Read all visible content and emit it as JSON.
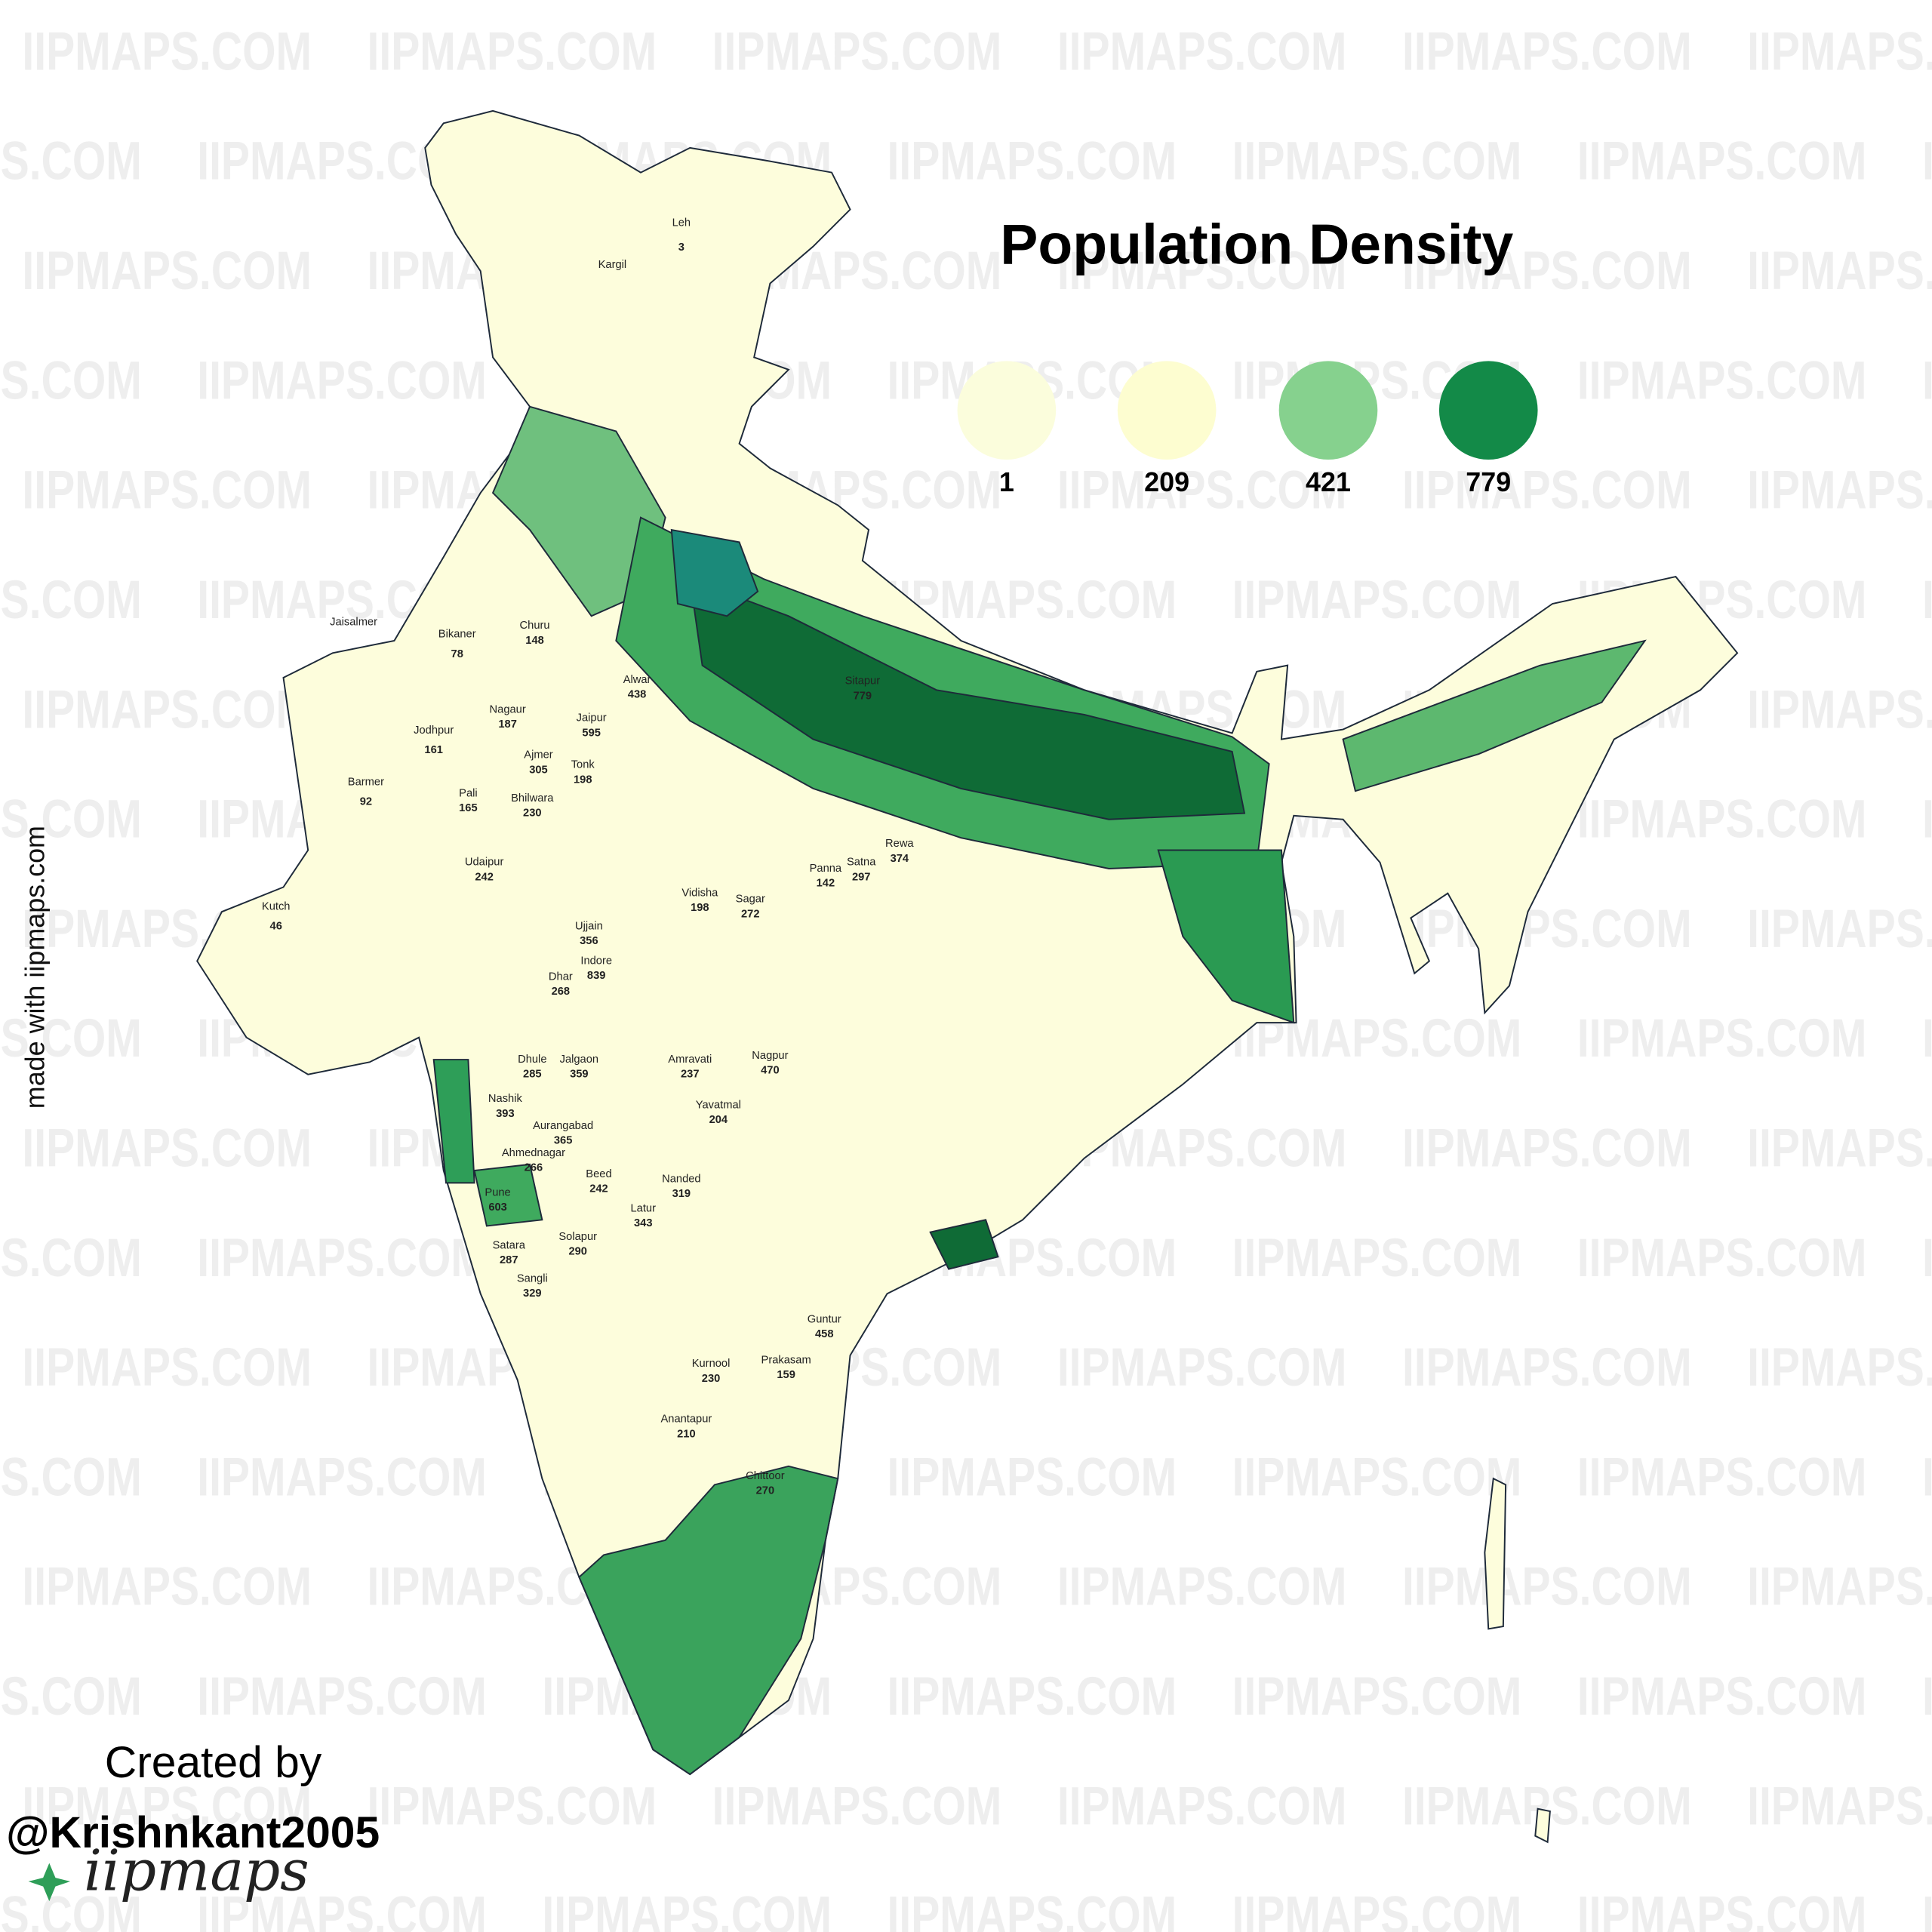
{
  "title": "Population Density",
  "legend": [
    {
      "value": 1,
      "color": "#fbfddc"
    },
    {
      "value": 209,
      "color": "#fdfdd0"
    },
    {
      "value": 421,
      "color": "#86d18e"
    },
    {
      "value": 779,
      "color": "#138a48"
    }
  ],
  "watermark": "IIPMAPS.COM",
  "side_note": "made with iipmaps.com",
  "credit": {
    "line1": "Created by",
    "handle": "@Krishnkant2005",
    "logo": "iipmaps"
  },
  "districts": [
    {
      "name": "Leh",
      "density": 3
    },
    {
      "name": "Kargil"
    },
    {
      "name": "Jaisalmer"
    },
    {
      "name": "Bikaner",
      "density": 78
    },
    {
      "name": "Jodhpur",
      "density": 161
    },
    {
      "name": "Barmer",
      "density": 92
    },
    {
      "name": "Kutch",
      "density": 46
    },
    {
      "name": "Nagaur",
      "density": 187
    },
    {
      "name": "Churu",
      "density": 148
    },
    {
      "name": "Jaipur",
      "density": 595
    },
    {
      "name": "Alwar",
      "density": 438
    },
    {
      "name": "Ajmer",
      "density": 305
    },
    {
      "name": "Tonk",
      "density": 198
    },
    {
      "name": "Bhilwara",
      "density": 230
    },
    {
      "name": "Pali",
      "density": 165
    },
    {
      "name": "Udaipur",
      "density": 242
    },
    {
      "name": "Dhule",
      "density": 285
    },
    {
      "name": "Jalgaon",
      "density": 359
    },
    {
      "name": "Nashik",
      "density": 393
    },
    {
      "name": "Aurangabad",
      "density": 365
    },
    {
      "name": "Ahmednagar",
      "density": 266
    },
    {
      "name": "Beed",
      "density": 242
    },
    {
      "name": "Pune",
      "density": 603
    },
    {
      "name": "Satara",
      "density": 287
    },
    {
      "name": "Sangli",
      "density": 329
    },
    {
      "name": "Solapur",
      "density": 290
    },
    {
      "name": "Latur",
      "density": 343
    },
    {
      "name": "Nanded",
      "density": 319
    },
    {
      "name": "Amravati",
      "density": 237
    },
    {
      "name": "Yavatmal",
      "density": 204
    },
    {
      "name": "Nagpur",
      "density": 470
    },
    {
      "name": "Kurnool",
      "density": 230
    },
    {
      "name": "Prakasam",
      "density": 159
    },
    {
      "name": "Anantapur",
      "density": 210
    },
    {
      "name": "Chittoor",
      "density": 270
    },
    {
      "name": "Guntur",
      "density": 458
    },
    {
      "name": "Sagar",
      "density": 272
    },
    {
      "name": "Vidisha",
      "density": 198
    },
    {
      "name": "Panna",
      "density": 142
    },
    {
      "name": "Satna",
      "density": 297
    },
    {
      "name": "Rewa",
      "density": 374
    },
    {
      "name": "Sitapur",
      "density": 779
    },
    {
      "name": "Dhar",
      "density": 268
    },
    {
      "name": "Ujjain",
      "density": 356
    },
    {
      "name": "Indore",
      "density": 839
    }
  ]
}
